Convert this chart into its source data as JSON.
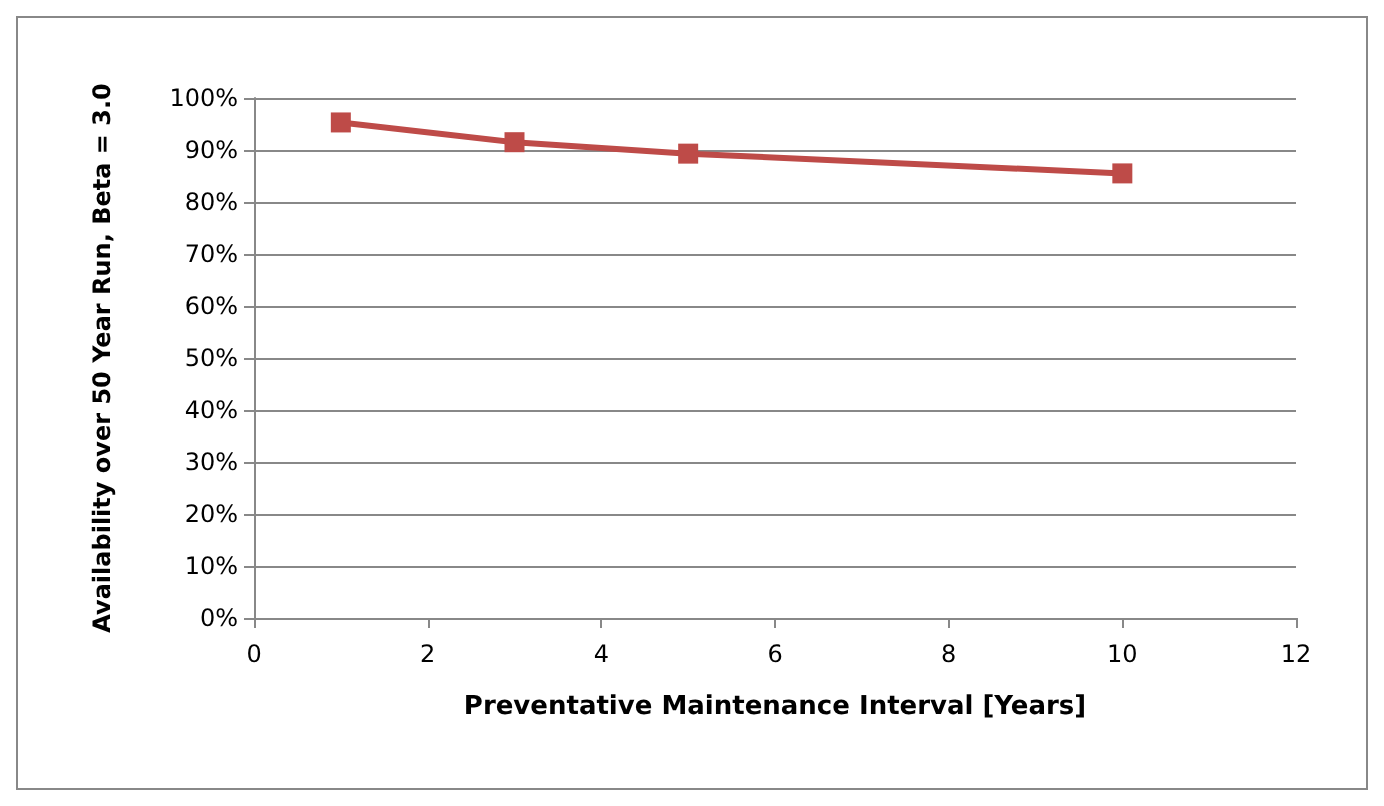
{
  "chart_data": {
    "type": "line",
    "xlabel": "Preventative Maintenance Interval [Years]",
    "ylabel": "Availability over 50 Year Run, Beta = 3.0",
    "x": [
      1,
      3,
      5,
      10
    ],
    "series": [
      {
        "color": "#be4b48",
        "values": [
          95.3,
          91.5,
          89.3,
          85.5
        ]
      }
    ],
    "xlim": [
      0,
      12
    ],
    "xticks": [
      0,
      2,
      4,
      6,
      8,
      10,
      12
    ],
    "ylim": [
      0,
      100
    ],
    "yticks": [
      {
        "value": 0,
        "label": "0%"
      },
      {
        "value": 10,
        "label": "10%"
      },
      {
        "value": 20,
        "label": "20%"
      },
      {
        "value": 30,
        "label": "30%"
      },
      {
        "value": 40,
        "label": "40%"
      },
      {
        "value": 50,
        "label": "50%"
      },
      {
        "value": 60,
        "label": "60%"
      },
      {
        "value": 70,
        "label": "70%"
      },
      {
        "value": 80,
        "label": "80%"
      },
      {
        "value": 90,
        "label": "90%"
      },
      {
        "value": 100,
        "label": "100%"
      }
    ],
    "grid": "y",
    "marker": "square",
    "line_style": "solid"
  }
}
